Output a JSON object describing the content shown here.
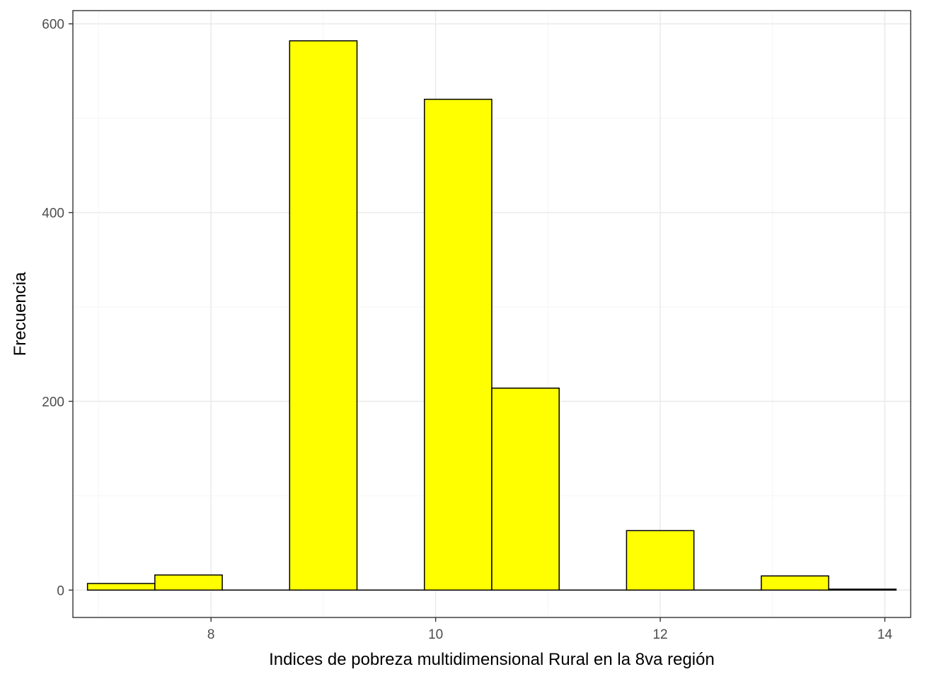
{
  "chart_data": {
    "type": "bar",
    "subtype": "histogram",
    "title": "",
    "xlabel": "Indices de pobreza multidimensional Rural en la 8va región",
    "ylabel": "Frecuencia",
    "xlim": [
      6.77,
      14.23
    ],
    "ylim": [
      -29,
      614
    ],
    "x_ticks": [
      8,
      10,
      12,
      14
    ],
    "y_ticks": [
      0,
      200,
      400,
      600
    ],
    "x_tick_labels": [
      "8",
      "10",
      "12",
      "14"
    ],
    "y_tick_labels": [
      "0",
      "200",
      "400",
      "600"
    ],
    "grid": true,
    "legend": "none",
    "bin_width": 0.6,
    "bins": [
      {
        "x0": 6.9,
        "x1": 7.5,
        "count": 7
      },
      {
        "x0": 7.5,
        "x1": 8.1,
        "count": 16
      },
      {
        "x0": 8.1,
        "x1": 8.7,
        "count": 0
      },
      {
        "x0": 8.7,
        "x1": 9.3,
        "count": 582
      },
      {
        "x0": 9.3,
        "x1": 9.9,
        "count": 0
      },
      {
        "x0": 9.9,
        "x1": 10.5,
        "count": 520
      },
      {
        "x0": 10.5,
        "x1": 11.1,
        "count": 214
      },
      {
        "x0": 11.1,
        "x1": 11.7,
        "count": 0
      },
      {
        "x0": 11.7,
        "x1": 12.3,
        "count": 63
      },
      {
        "x0": 12.3,
        "x1": 12.9,
        "count": 0
      },
      {
        "x0": 12.9,
        "x1": 13.5,
        "count": 15
      },
      {
        "x0": 13.5,
        "x1": 14.1,
        "count": 1
      }
    ],
    "colors": {
      "bar_fill": "#FFFF00",
      "bar_stroke": "#000000",
      "panel_border": "#333333",
      "grid_major": "#EBEBEB",
      "grid_minor": "#F5F5F5"
    }
  }
}
